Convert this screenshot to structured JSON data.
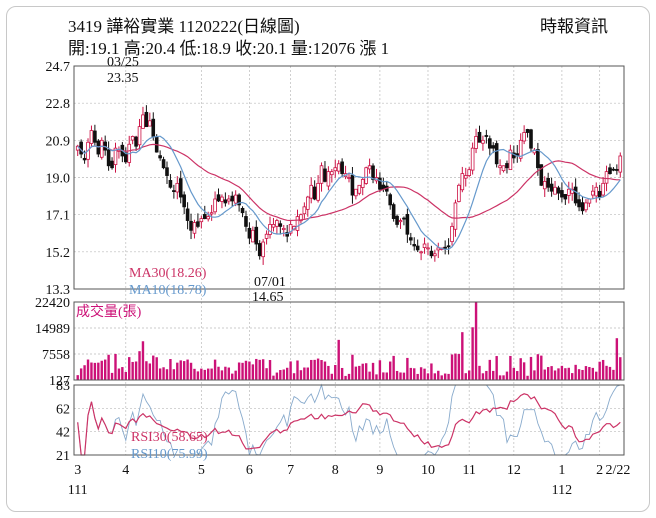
{
  "header": {
    "title": "3419  譁裕實業 1120222(日線圖)",
    "source": "時報資訊",
    "ohlc": "開:19.1 高:20.4 低:18.9 收:20.1 量:12076 漲 1"
  },
  "colors": {
    "candle_up": "#cc1144",
    "candle_down": "#111111",
    "ma30": "#cc3366",
    "ma10": "#6699cc",
    "volume": "#cc1177",
    "rsi30": "#cc3366",
    "rsi10": "#88aacc"
  },
  "chart_data": [
    {
      "type": "candlestick",
      "panel": "price",
      "y_ticks": [
        "24.7",
        "22.8",
        "20.9",
        "19.0",
        "17.1",
        "15.2",
        "13.3"
      ],
      "ylim": [
        13.3,
        24.7
      ],
      "x_labels": [
        "3",
        "4",
        "5",
        "6",
        "7",
        "8",
        "9",
        "10",
        "11",
        "12",
        "1",
        "2",
        "2/22"
      ],
      "year_labels": [
        "111",
        "112"
      ],
      "annotations": [
        {
          "date": "03/25",
          "value": "23.35"
        },
        {
          "date": "07/01",
          "value": "14.65"
        }
      ],
      "series": [
        {
          "name": "MA30(18.26)",
          "last": 18.26
        },
        {
          "name": "MA10(18.78)",
          "last": 18.78
        }
      ],
      "close": [
        20.6,
        20.2,
        19.9,
        20.8,
        21.4,
        20.8,
        20.2,
        20.9,
        20.4,
        19.6,
        19.5,
        20.5,
        20.4,
        20.1,
        19.8,
        20.7,
        21.1,
        20.6,
        21.6,
        22.2,
        21.6,
        21.9,
        21.1,
        20.3,
        20.0,
        19.5,
        19.1,
        18.5,
        18.3,
        18.7,
        18.0,
        17.5,
        16.8,
        16.3,
        16.7,
        16.5,
        16.9,
        16.9,
        17.0,
        17.2,
        17.9,
        17.8,
        18.0,
        17.7,
        17.9,
        17.8,
        18.1,
        17.6,
        17.2,
        16.5,
        15.9,
        16.3,
        15.6,
        15.0,
        15.7,
        16.1,
        16.6,
        16.6,
        16.8,
        16.5,
        16.4,
        16.0,
        16.6,
        16.5,
        17.0,
        17.1,
        17.5,
        18.0,
        18.6,
        17.9,
        18.7,
        19.6,
        18.8,
        19.3,
        19.3,
        19.5,
        19.7,
        19.2,
        19.2,
        19.0,
        18.1,
        18.4,
        18.6,
        18.9,
        19.5,
        19.6,
        18.9,
        19.0,
        18.4,
        18.4,
        18.3,
        17.6,
        16.9,
        16.6,
        16.8,
        16.9,
        16.1,
        15.8,
        15.5,
        15.3,
        15.2,
        15.6,
        15.4,
        15.0,
        15.1,
        15.4,
        15.4,
        15.4,
        15.5,
        16.5,
        17.7,
        18.6,
        19.2,
        19.1,
        19.4,
        20.5,
        21.1,
        20.8,
        20.9,
        21.1,
        20.5,
        20.5,
        19.7,
        19.6,
        19.6,
        19.5,
        20.4,
        20.0,
        20.1,
        20.9,
        21.3,
        21.3,
        20.5,
        20.4,
        19.5,
        18.6,
        18.8,
        18.5,
        18.3,
        18.5,
        18.2,
        18.0,
        17.9,
        18.4,
        18.4,
        17.7,
        17.5,
        17.3,
        17.7,
        17.9,
        18.3,
        18.5,
        18.0,
        18.7,
        19.3,
        19.2,
        19.4,
        19.4,
        20.1
      ],
      "volume_ylim": [
        127,
        22420
      ],
      "volume_ticks": [
        "22420",
        "14989",
        "7558",
        "127"
      ],
      "volume_label": "成交量(張)"
    },
    {
      "type": "line",
      "panel": "rsi",
      "y_ticks": [
        "83",
        "62",
        "42",
        "21"
      ],
      "ylim": [
        21,
        83
      ],
      "series": [
        {
          "name": "RSI30(58.65)",
          "last": 58.65
        },
        {
          "name": "RSI10(75.99)",
          "last": 75.99
        }
      ]
    }
  ]
}
